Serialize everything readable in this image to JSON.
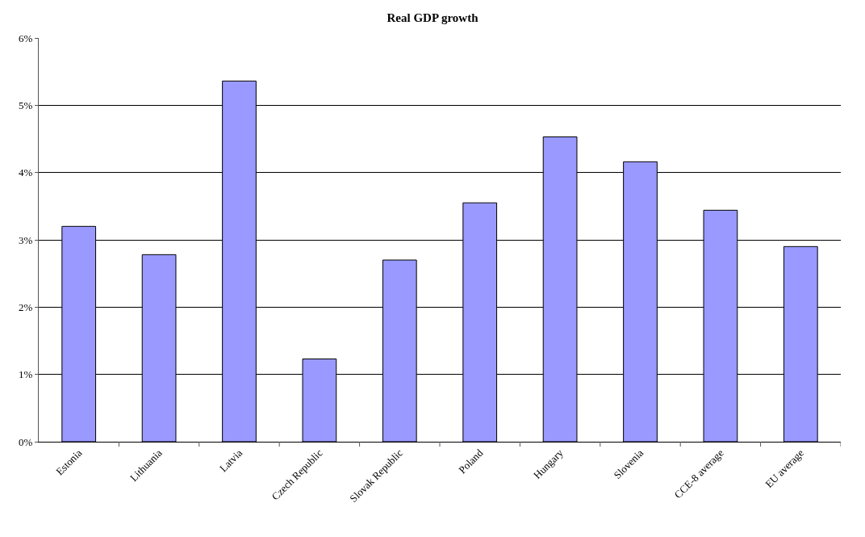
{
  "chart_data": {
    "type": "bar",
    "title": "Real GDP growth",
    "categories": [
      "Estonia",
      "Lithuania",
      "Latvia",
      "Czech Republic",
      "Slovak Republic",
      "Poland",
      "Hungary",
      "Slovenia",
      "CCE-8 average",
      "EU average"
    ],
    "values": [
      3.2,
      2.78,
      5.36,
      1.23,
      2.7,
      3.55,
      4.53,
      4.16,
      3.44,
      2.9
    ],
    "color": "#9999ff",
    "ylim": [
      0,
      6
    ],
    "yticks": [
      {
        "value": 0,
        "label": "0%"
      },
      {
        "value": 1,
        "label": "1%"
      },
      {
        "value": 2,
        "label": "2%"
      },
      {
        "value": 3,
        "label": "3%"
      },
      {
        "value": 4,
        "label": "4%"
      },
      {
        "value": 5,
        "label": "5%"
      },
      {
        "value": 6,
        "label": "6%"
      }
    ],
    "grid": "y"
  }
}
